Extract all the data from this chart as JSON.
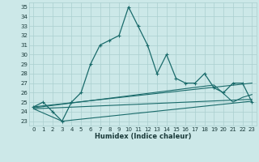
{
  "xlabel": "Humidex (Indice chaleur)",
  "background_color": "#cce8e8",
  "line_color": "#1a6b6b",
  "grid_color": "#aacfcf",
  "xlim": [
    -0.5,
    23.5
  ],
  "ylim": [
    22.5,
    35.5
  ],
  "xticks": [
    0,
    1,
    2,
    3,
    4,
    5,
    6,
    7,
    8,
    9,
    10,
    11,
    12,
    13,
    14,
    15,
    16,
    17,
    18,
    19,
    20,
    21,
    22,
    23
  ],
  "yticks": [
    23,
    24,
    25,
    26,
    27,
    28,
    29,
    30,
    31,
    32,
    33,
    34,
    35
  ],
  "main_x": [
    0,
    1,
    2,
    3,
    4,
    5,
    6,
    7,
    8,
    9,
    10,
    11,
    12,
    13,
    14,
    15,
    16,
    17,
    18,
    19,
    20,
    21,
    22,
    23
  ],
  "main_y": [
    24.5,
    25.0,
    24.0,
    23.0,
    25.0,
    26.0,
    29.0,
    31.0,
    31.5,
    32.0,
    35.0,
    33.0,
    31.0,
    28.0,
    30.0,
    27.5,
    27.0,
    27.0,
    28.0,
    26.5,
    26.0,
    27.0,
    27.0,
    25.0
  ],
  "line2_x": [
    0,
    23
  ],
  "line2_y": [
    24.5,
    27.0
  ],
  "line3_x": [
    0,
    19,
    21,
    22,
    23
  ],
  "line3_y": [
    24.4,
    26.8,
    25.0,
    25.5,
    25.8
  ],
  "line4_x": [
    0,
    23
  ],
  "line4_y": [
    24.3,
    25.3
  ],
  "line5_x": [
    0,
    3,
    23
  ],
  "line5_y": [
    24.3,
    23.0,
    25.1
  ]
}
